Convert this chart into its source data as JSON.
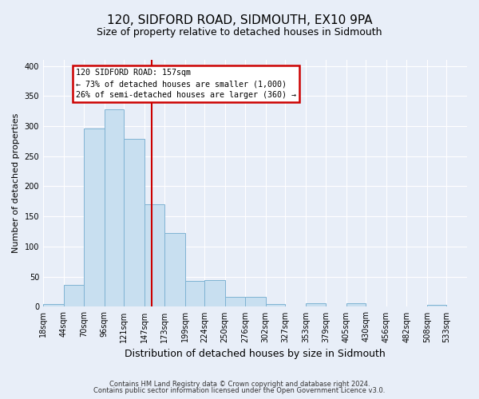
{
  "title": "120, SIDFORD ROAD, SIDMOUTH, EX10 9PA",
  "subtitle": "Size of property relative to detached houses in Sidmouth",
  "xlabel": "Distribution of detached houses by size in Sidmouth",
  "ylabel": "Number of detached properties",
  "bin_labels": [
    "18sqm",
    "44sqm",
    "70sqm",
    "96sqm",
    "121sqm",
    "147sqm",
    "173sqm",
    "199sqm",
    "224sqm",
    "250sqm",
    "276sqm",
    "302sqm",
    "327sqm",
    "353sqm",
    "379sqm",
    "405sqm",
    "430sqm",
    "456sqm",
    "482sqm",
    "508sqm",
    "533sqm"
  ],
  "bin_edges": [
    18,
    44,
    70,
    96,
    121,
    147,
    173,
    199,
    224,
    250,
    276,
    302,
    327,
    353,
    379,
    405,
    430,
    456,
    482,
    508,
    533,
    559
  ],
  "bar_heights": [
    4,
    36,
    296,
    328,
    279,
    170,
    123,
    43,
    44,
    16,
    17,
    5,
    0,
    6,
    0,
    6,
    0,
    0,
    0,
    3,
    0
  ],
  "bar_color": "#c8dff0",
  "bar_edgecolor": "#7fb3d3",
  "property_value": 157,
  "vline_color": "#cc0000",
  "annotation_line1": "120 SIDFORD ROAD: 157sqm",
  "annotation_line2": "← 73% of detached houses are smaller (1,000)",
  "annotation_line3": "26% of semi-detached houses are larger (360) →",
  "annotation_box_edgecolor": "#cc0000",
  "ylim": [
    0,
    410
  ],
  "yticks": [
    0,
    50,
    100,
    150,
    200,
    250,
    300,
    350,
    400
  ],
  "footer1": "Contains HM Land Registry data © Crown copyright and database right 2024.",
  "footer2": "Contains public sector information licensed under the Open Government Licence v3.0.",
  "background_color": "#e8eef8",
  "plot_background": "#e8eef8",
  "grid_color": "#ffffff",
  "title_fontsize": 11,
  "subtitle_fontsize": 9,
  "ylabel_fontsize": 8,
  "xlabel_fontsize": 9,
  "tick_fontsize": 7,
  "footer_fontsize": 6
}
